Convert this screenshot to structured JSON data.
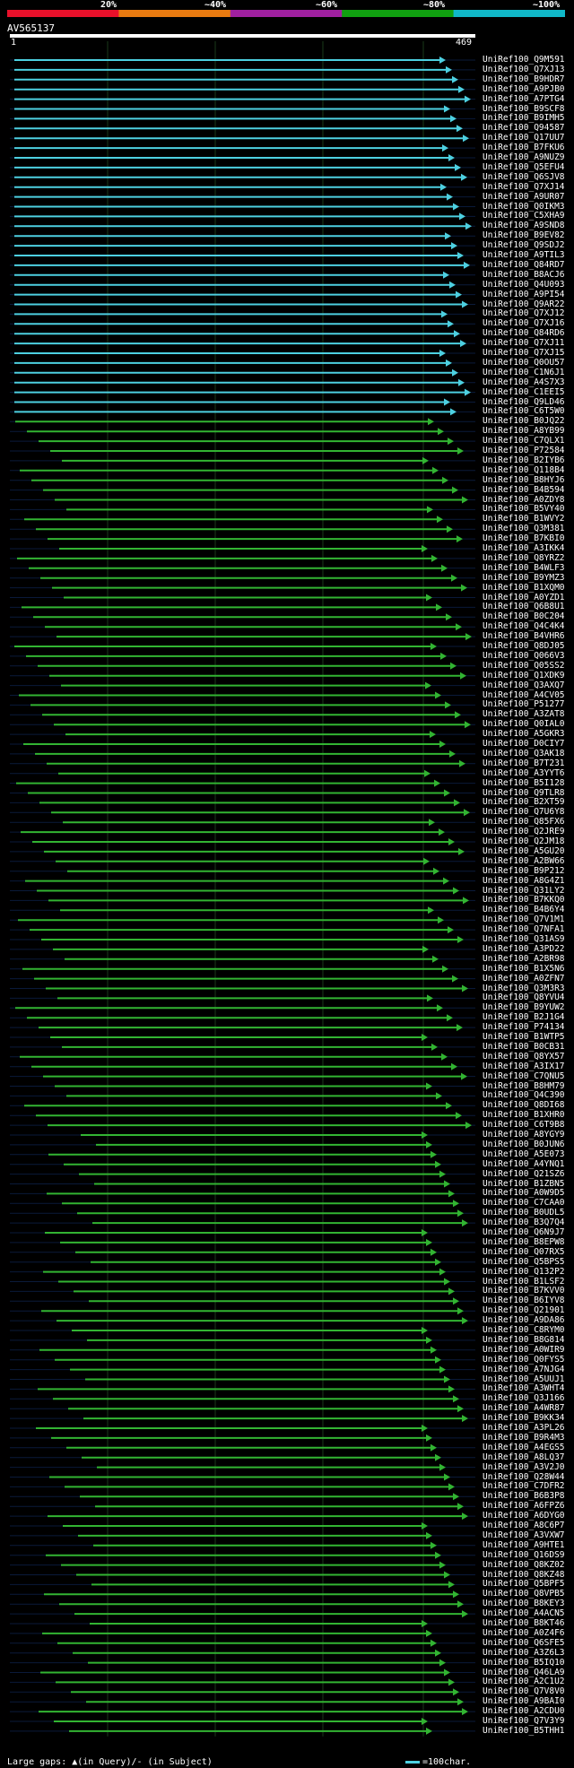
{
  "legend": {
    "labels": [
      "20%",
      "~40%",
      "~60%",
      "~80%",
      "~100%"
    ],
    "colors": [
      "#e8102a",
      "#e87a10",
      "#a020a0",
      "#10a010",
      "#10b8c8"
    ]
  },
  "query": {
    "id": "AV565137",
    "start": "1",
    "end": "469"
  },
  "footer": {
    "gaps_text": "Large gaps: ▲(in Query)/- (in Subject)",
    "scale_text": "=100char."
  },
  "hits": [
    "UniRef100_Q9M591",
    "UniRef100_Q7XJ13",
    "UniRef100_B9HDR7",
    "UniRef100_A9PJB0",
    "UniRef100_A7PTG4",
    "UniRef100_B9SCF8",
    "UniRef100_B9IMH5",
    "UniRef100_Q94587",
    "UniRef100_Q17UU7",
    "UniRef100_B7FKU6",
    "UniRef100_A9NUZ9",
    "UniRef100_Q5EFU4",
    "UniRef100_Q6SJV8",
    "UniRef100_Q7XJ14",
    "UniRef100_A9UR07",
    "UniRef100_Q0IKM3",
    "UniRef100_C5XHA9",
    "UniRef100_A9SND8",
    "UniRef100_B9EV82",
    "UniRef100_Q9SDJ2",
    "UniRef100_A9TIL3",
    "UniRef100_Q84RD7",
    "UniRef100_B8ACJ6",
    "UniRef100_Q4U093",
    "UniRef100_A9PI54",
    "UniRef100_Q9AR22",
    "UniRef100_Q7XJ12",
    "UniRef100_Q7XJ16",
    "UniRef100_Q84RD6",
    "UniRef100_Q7XJ11",
    "UniRef100_Q7XJ15",
    "UniRef100_Q0OU57",
    "UniRef100_C1N6J1",
    "UniRef100_A4S7X3",
    "UniRef100_C1EEI5",
    "UniRef100_Q9LD46",
    "UniRef100_C6T5W0",
    "UniRef100_B0JQ22",
    "UniRef100_A8YB99",
    "UniRef100_C7QLX1",
    "UniRef100_P72584",
    "UniRef100_B2IYB6",
    "UniRef100_Q118B4",
    "UniRef100_B8HYJ6",
    "UniRef100_B4B594",
    "UniRef100_A0ZDY8",
    "UniRef100_B5VY40",
    "UniRef100_B1WVY2",
    "UniRef100_Q3M381",
    "UniRef100_B7KBI0",
    "UniRef100_A3IKK4",
    "UniRef100_Q8YRZ2",
    "UniRef100_B4WLF3",
    "UniRef100_B9YMZ3",
    "UniRef100_B1XQM0",
    "UniRef100_A0YZD1",
    "UniRef100_Q6B8U1",
    "UniRef100_B0C204",
    "UniRef100_Q4C4K4",
    "UniRef100_B4VHR6",
    "UniRef100_Q8DJ05",
    "UniRef100_Q066V3",
    "UniRef100_Q05SS2",
    "UniRef100_Q1XDK9",
    "UniRef100_Q3AXQ7",
    "UniRef100_A4CV05",
    "UniRef100_P51277",
    "UniRef100_A3ZAT8",
    "UniRef100_Q0IAL0",
    "UniRef100_A5GKR3",
    "UniRef100_D0CIY7",
    "UniRef100_Q3AK18",
    "UniRef100_B7T231",
    "UniRef100_A3YYT6",
    "UniRef100_B5I128",
    "UniRef100_Q9TLR8",
    "UniRef100_B2XT59",
    "UniRef100_Q7U6Y8",
    "UniRef100_Q85FX6",
    "UniRef100_Q2JRE9",
    "UniRef100_Q2JM18",
    "UniRef100_A5GU20",
    "UniRef100_A2BW66",
    "UniRef100_B9P212",
    "UniRef100_A8G4Z1",
    "UniRef100_Q31LY2",
    "UniRef100_B7KKQ0",
    "UniRef100_B4B6Y4",
    "UniRef100_Q7V1M1",
    "UniRef100_Q7NFA1",
    "UniRef100_Q31AS9",
    "UniRef100_A3PD22",
    "UniRef100_A2BR98",
    "UniRef100_B1X5N6",
    "UniRef100_A0ZFN7",
    "UniRef100_Q3M3R3",
    "UniRef100_Q8YVU4",
    "UniRef100_B9YUW2",
    "UniRef100_B2J1G4",
    "UniRef100_P74134",
    "UniRef100_B1WTP5",
    "UniRef100_B0CB31",
    "UniRef100_Q8YX57",
    "UniRef100_A3IX17",
    "UniRef100_C7QNU5",
    "UniRef100_B8HM79",
    "UniRef100_Q4C390",
    "UniRef100_Q8DI68",
    "UniRef100_B1XHR0",
    "UniRef100_C6T9B8",
    "UniRef100_A8YGY9",
    "UniRef100_B0JUN6",
    "UniRef100_A5E073",
    "UniRef100_A4YNQ1",
    "UniRef100_Q21SZ6",
    "UniRef100_B1ZBN5",
    "UniRef100_A0W9D5",
    "UniRef100_C7CAA0",
    "UniRef100_B0UDL5",
    "UniRef100_B3Q7Q4",
    "UniRef100_Q6N9J7",
    "UniRef100_B8EPW8",
    "UniRef100_Q07RX5",
    "UniRef100_Q5BPS5",
    "UniRef100_Q132P2",
    "UniRef100_B1LSF2",
    "UniRef100_B7KVV0",
    "UniRef100_B6IYV8",
    "UniRef100_Q21901",
    "UniRef100_A9DA86",
    "UniRef100_C8RYM0",
    "UniRef100_B8G814",
    "UniRef100_A0WIR9",
    "UniRef100_Q0FYS5",
    "UniRef100_A7NJG4",
    "UniRef100_A5UUJ1",
    "UniRef100_A3WHT4",
    "UniRef100_Q3J166",
    "UniRef100_A4WR87",
    "UniRef100_B9KK34",
    "UniRef100_A3PL26",
    "UniRef100_B9R4M3",
    "UniRef100_A4EGS5",
    "UniRef100_A8LQ37",
    "UniRef100_A3V2J0",
    "UniRef100_Q28W44",
    "UniRef100_C7DFR2",
    "UniRef100_B6B3P8",
    "UniRef100_A6FPZ6",
    "UniRef100_A6DYG0",
    "UniRef100_A8C6P7",
    "UniRef100_A3VXW7",
    "UniRef100_A9HTE1",
    "UniRef100_Q16DS9",
    "UniRef100_Q8KZ02",
    "UniRef100_Q8KZ48",
    "UniRef100_Q5BPF5",
    "UniRef100_Q8VPB5",
    "UniRef100_B8KEY3",
    "UniRef100_A4ACN5",
    "UniRef100_B8KT46",
    "UniRef100_A0Z4F6",
    "UniRef100_Q6SFE5",
    "UniRef100_A3Z6L3",
    "UniRef100_B5IQ10",
    "UniRef100_Q46LA9",
    "UniRef100_A2C1U2",
    "UniRef100_Q7V8V0",
    "UniRef100_A9BAI0",
    "UniRef100_A2CDU0",
    "UniRef100_Q7V3Y9",
    "UniRef100_B5THH1"
  ]
}
